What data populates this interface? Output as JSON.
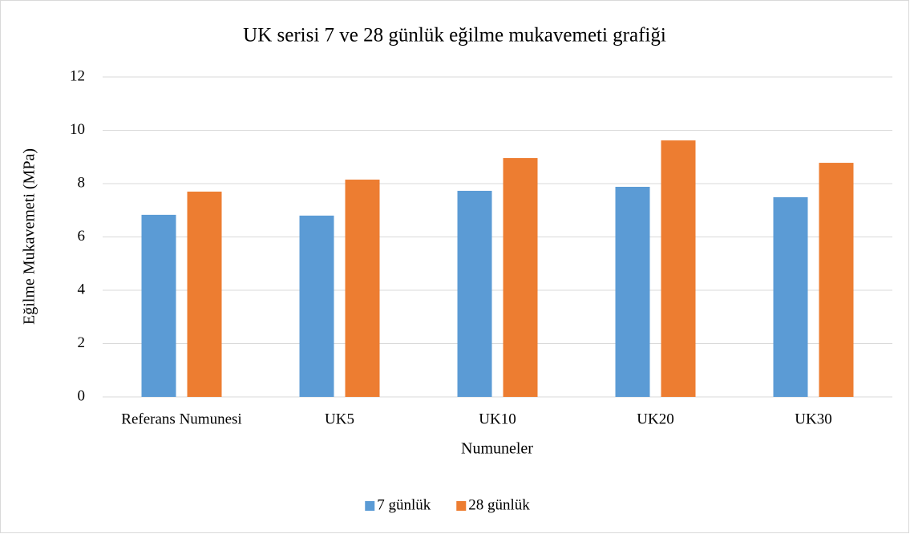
{
  "chart_data": {
    "type": "bar",
    "title": "UK serisi 7 ve 28 günlük eğilme mukavemeti grafiği",
    "x_label": "Numuneler",
    "y_label": "Eğilme Mukavemeti (MPa)",
    "categories": [
      "Referans Numunesi",
      "UK5",
      "UK10",
      "UK20",
      "UK30"
    ],
    "series": [
      {
        "name": "7 günlük",
        "color": "#5b9bd5",
        "values": [
          6.83,
          6.8,
          7.73,
          7.88,
          7.49
        ]
      },
      {
        "name": "28 günlük",
        "color": "#ed7d31",
        "values": [
          7.7,
          8.15,
          8.96,
          9.62,
          8.78
        ]
      }
    ],
    "ylim": [
      0,
      12
    ],
    "yticks": [
      0,
      2,
      4,
      6,
      8,
      10,
      12
    ],
    "grid": true,
    "legend": "bottom"
  }
}
